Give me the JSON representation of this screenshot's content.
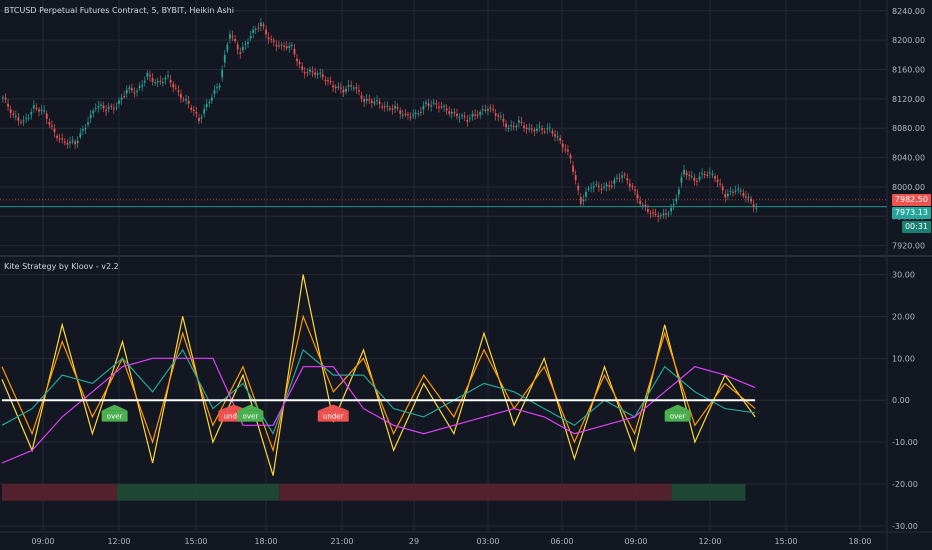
{
  "price_pane": {
    "title": "BTCUSD Perpetual Futures Contract, 5, BYBIT, Heikin Ashi",
    "last_price_label": "7982.50",
    "current_price_label": "7973.13",
    "countdown_label": "00:31",
    "colors": {
      "up": "#26a69a",
      "down": "#ef5350",
      "tag_red": "#ef5350",
      "tag_teal": "#26a69a"
    }
  },
  "indicator_pane": {
    "title": "Kite Strategy by Kloov - v2.2"
  },
  "chart_data": [
    {
      "type": "candlestick",
      "y_ticks": [
        "8240.00",
        "8200.00",
        "8160.00",
        "8120.00",
        "8080.00",
        "8040.00",
        "8000.00",
        "7960.00",
        "7920.00"
      ],
      "ylim": [
        7910,
        8252
      ],
      "x_ticks": [
        "09:00",
        "12:00",
        "15:00",
        "18:00",
        "21:00",
        "29",
        "03:00",
        "06:00",
        "09:00",
        "12:00",
        "15:00",
        "18:00"
      ],
      "close_path": [
        [
          0,
          8122
        ],
        [
          4,
          8095
        ],
        [
          8,
          8090
        ],
        [
          12,
          8108
        ],
        [
          16,
          8100
        ],
        [
          20,
          8075
        ],
        [
          24,
          8060
        ],
        [
          28,
          8058
        ],
        [
          32,
          8085
        ],
        [
          36,
          8110
        ],
        [
          40,
          8105
        ],
        [
          44,
          8112
        ],
        [
          48,
          8132
        ],
        [
          52,
          8128
        ],
        [
          56,
          8155
        ],
        [
          60,
          8140
        ],
        [
          64,
          8148
        ],
        [
          68,
          8130
        ],
        [
          72,
          8112
        ],
        [
          76,
          8090
        ],
        [
          80,
          8120
        ],
        [
          84,
          8140
        ],
        [
          88,
          8210
        ],
        [
          92,
          8185
        ],
        [
          96,
          8205
        ],
        [
          100,
          8222
        ],
        [
          104,
          8200
        ],
        [
          108,
          8190
        ],
        [
          112,
          8190
        ],
        [
          116,
          8160
        ],
        [
          120,
          8155
        ],
        [
          124,
          8150
        ],
        [
          128,
          8140
        ],
        [
          132,
          8130
        ],
        [
          136,
          8138
        ],
        [
          140,
          8120
        ],
        [
          144,
          8115
        ],
        [
          148,
          8108
        ],
        [
          152,
          8110
        ],
        [
          156,
          8095
        ],
        [
          160,
          8098
        ],
        [
          164,
          8115
        ],
        [
          168,
          8110
        ],
        [
          172,
          8105
        ],
        [
          176,
          8100
        ],
        [
          180,
          8090
        ],
        [
          184,
          8100
        ],
        [
          188,
          8110
        ],
        [
          192,
          8095
        ],
        [
          196,
          8080
        ],
        [
          200,
          8090
        ],
        [
          204,
          8075
        ],
        [
          208,
          8080
        ],
        [
          212,
          8080
        ],
        [
          216,
          8060
        ],
        [
          220,
          8040
        ],
        [
          224,
          7980
        ],
        [
          228,
          8000
        ],
        [
          232,
          8000
        ],
        [
          236,
          8005
        ],
        [
          240,
          8015
        ],
        [
          244,
          8000
        ],
        [
          248,
          7975
        ],
        [
          252,
          7960
        ],
        [
          256,
          7962
        ],
        [
          260,
          7975
        ],
        [
          264,
          8020
        ],
        [
          268,
          8010
        ],
        [
          272,
          8020
        ],
        [
          276,
          8012
        ],
        [
          280,
          7990
        ],
        [
          284,
          7998
        ],
        [
          288,
          7985
        ],
        [
          292,
          7973
        ]
      ],
      "candles_shown": 293
    },
    {
      "type": "line",
      "y_ticks": [
        "30.00",
        "20.00",
        "10.00",
        "0.00",
        "-10.00",
        "-20.00",
        "-30.00"
      ],
      "ylim": [
        -31,
        33
      ],
      "x": [
        0,
        12,
        24,
        36,
        48,
        60,
        72,
        84,
        96,
        108,
        120,
        132,
        144,
        156,
        168,
        180,
        192,
        204,
        216,
        228,
        240,
        252,
        264,
        276,
        288,
        300
      ],
      "series": [
        {
          "color": "#fdd835",
          "values": [
            5,
            -12,
            18,
            -8,
            14,
            -15,
            20,
            -10,
            6,
            -18,
            30,
            -5,
            12,
            -12,
            4,
            -8,
            16,
            -6,
            10,
            -14,
            8,
            -12,
            18,
            -10,
            6,
            -4
          ]
        },
        {
          "color": "#ff9800",
          "values": [
            8,
            -8,
            14,
            -4,
            10,
            -10,
            16,
            -6,
            8,
            -12,
            20,
            2,
            10,
            -8,
            6,
            -4,
            12,
            -2,
            8,
            -10,
            6,
            -8,
            16,
            -6,
            4,
            -2
          ]
        },
        {
          "color": "#26a69a",
          "values": [
            -6,
            -2,
            6,
            4,
            10,
            2,
            12,
            -2,
            4,
            -8,
            12,
            6,
            6,
            -2,
            -4,
            0,
            4,
            2,
            -2,
            -6,
            0,
            -4,
            8,
            2,
            -2,
            -3
          ]
        },
        {
          "color": "#e040fb",
          "values": [
            -15,
            -12,
            -4,
            2,
            8,
            10,
            10,
            10,
            -6,
            -6,
            8,
            8,
            -2,
            -6,
            -8,
            -6,
            -4,
            -2,
            -4,
            -8,
            -6,
            -4,
            2,
            8,
            6,
            3
          ]
        },
        {
          "color": "#ffffff",
          "values": [
            0,
            0,
            0,
            0,
            0,
            0,
            0,
            0,
            0,
            0,
            0,
            0,
            0,
            0,
            0,
            0,
            0,
            0,
            0,
            0,
            0,
            0,
            0,
            0,
            0,
            0
          ]
        }
      ],
      "signal_bar": [
        {
          "from": 0,
          "to": 34,
          "state": "bearish"
        },
        {
          "from": 34,
          "to": 82,
          "state": "bullish"
        },
        {
          "from": 82,
          "to": 198,
          "state": "bearish"
        },
        {
          "from": 198,
          "to": 220,
          "state": "bullish"
        }
      ],
      "annotations": [
        {
          "text": "over",
          "bar": 34,
          "kind": "long",
          "color": "#4caf50"
        },
        {
          "text": "under",
          "bar": 70,
          "kind": "short",
          "color": "#ef5350"
        },
        {
          "text": "over",
          "bar": 75,
          "kind": "long",
          "color": "#4caf50"
        },
        {
          "text": "under",
          "bar": 100,
          "kind": "short",
          "color": "#ef5350"
        },
        {
          "text": "over",
          "bar": 204,
          "kind": "long",
          "color": "#4caf50"
        }
      ]
    }
  ]
}
